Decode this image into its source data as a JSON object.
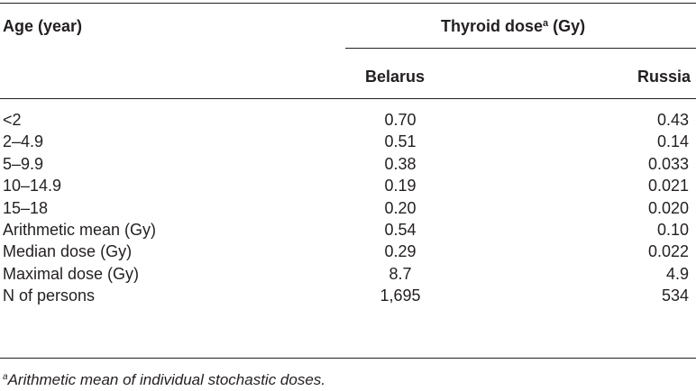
{
  "table": {
    "age_header": "Age (year)",
    "dose_header": "Thyroid dose",
    "dose_header_sup": "a",
    "dose_header_unit": " (Gy)",
    "col_belarus": "Belarus",
    "col_russia": "Russia",
    "rows": [
      {
        "label": "<2",
        "belarus": "0.70",
        "russia": "0.43"
      },
      {
        "label": "2–4.9",
        "belarus": "0.51",
        "russia": "0.14"
      },
      {
        "label": "5–9.9",
        "belarus": "0.38",
        "russia": "0.033"
      },
      {
        "label": "10–14.9",
        "belarus": "0.19",
        "russia": "0.021"
      },
      {
        "label": "15–18",
        "belarus": "0.20",
        "russia": "0.020"
      },
      {
        "label": "Arithmetic mean (Gy)",
        "belarus": "0.54",
        "russia": "0.10"
      },
      {
        "label": "Median dose (Gy)",
        "belarus": "0.29",
        "russia": "0.022"
      },
      {
        "label": "Maximal dose (Gy)",
        "belarus": "8.7",
        "russia": "4.9"
      },
      {
        "label": "N of persons",
        "belarus": "1,695",
        "russia": "534"
      }
    ]
  },
  "footnote": {
    "sup": "a",
    "text": "Arithmetic mean of individual stochastic doses."
  }
}
